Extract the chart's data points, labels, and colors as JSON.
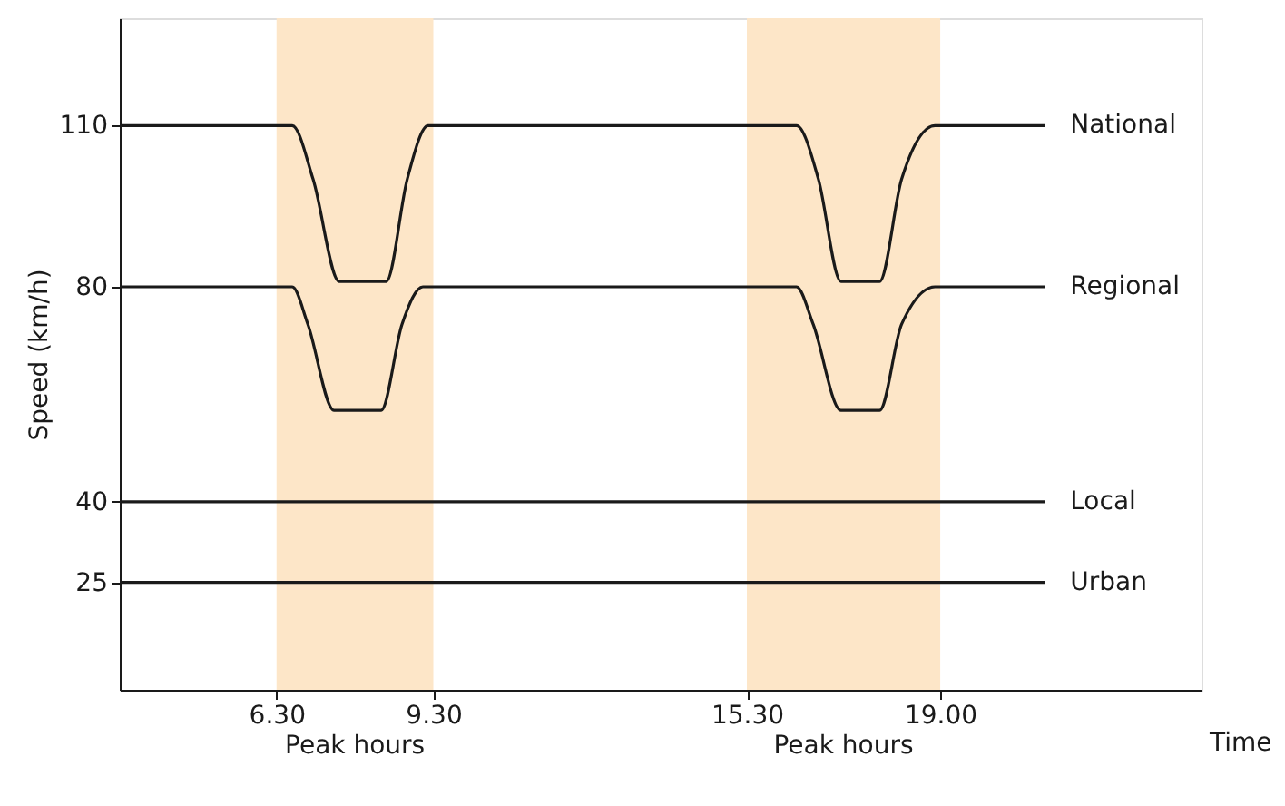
{
  "chart_data": {
    "type": "line",
    "xlabel": "Time",
    "ylabel": "Speed (km/h)",
    "xlim": [
      3.3,
      24
    ],
    "ylim": [
      5,
      130
    ],
    "xticks": [
      {
        "value": 6.3,
        "label": "6.30"
      },
      {
        "value": 9.3,
        "label": "9.30"
      },
      {
        "value": 15.3,
        "label": "15.30"
      },
      {
        "value": 19,
        "label": "19.00"
      }
    ],
    "yticks": [
      25,
      40,
      80,
      110
    ],
    "grid": false,
    "legend": false,
    "marker": "none",
    "line_style": "solid",
    "bands": [
      {
        "axis": "x",
        "from": 6.3,
        "to": 9.3,
        "label": "Peak hours",
        "color": "#fde6c8"
      },
      {
        "axis": "x",
        "from": 15.3,
        "to": 19,
        "label": "Peak hours",
        "color": "#fde6c8"
      }
    ],
    "series": [
      {
        "name": "National",
        "color": "#1a1a1a",
        "x": [
          3.3,
          6.6,
          7.0,
          7.5,
          8.4,
          8.8,
          9.2,
          16.25,
          16.67,
          17.1,
          17.84,
          18.26,
          18.9,
          21
        ],
        "values": [
          110,
          110,
          100,
          81,
          81,
          100,
          110,
          110,
          100,
          81,
          81,
          100,
          110,
          110
        ]
      },
      {
        "name": "Regional",
        "color": "#1a1a1a",
        "x": [
          3.3,
          6.6,
          6.9,
          7.4,
          8.3,
          8.7,
          9.1,
          16.25,
          16.57,
          17.1,
          17.84,
          18.26,
          18.9,
          21
        ],
        "values": [
          80,
          80,
          73,
          57,
          57,
          73,
          80,
          80,
          73,
          57,
          57,
          73,
          80,
          80
        ]
      },
      {
        "name": "Local",
        "color": "#1a1a1a",
        "x": [
          3.3,
          21
        ],
        "values": [
          40,
          40
        ]
      },
      {
        "name": "Urban",
        "color": "#1a1a1a",
        "x": [
          3.3,
          21
        ],
        "values": [
          25,
          25
        ]
      }
    ]
  }
}
